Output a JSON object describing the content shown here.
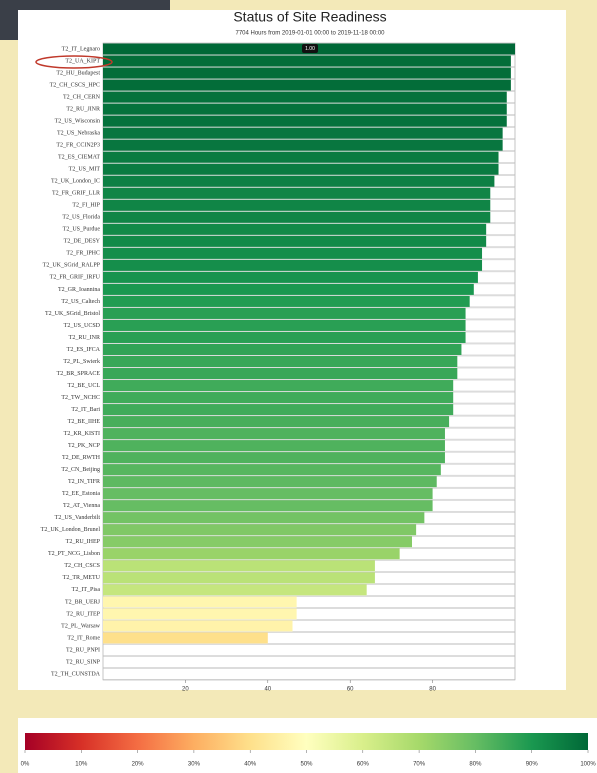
{
  "chart_data": {
    "type": "barh",
    "title": "Status of Site Readiness",
    "subtitle": "7704 Hours from 2019-01-01 00:00 to 2019-11-18 00:00",
    "annotation": "1.00",
    "categories": [
      "T2_IT_Legnaro",
      "T2_UA_KIPT",
      "T2_HU_Budapest",
      "T2_CH_CSCS_HPC",
      "T2_CH_CERN",
      "T2_RU_JINR",
      "T2_US_Wisconsin",
      "T2_US_Nebraska",
      "T2_FR_CCIN2P3",
      "T2_ES_CIEMAT",
      "T2_US_MIT",
      "T2_UK_London_IC",
      "T2_FR_GRIF_LLR",
      "T2_FI_HIP",
      "T2_US_Florida",
      "T2_US_Purdue",
      "T2_DE_DESY",
      "T2_FR_IPHC",
      "T2_UK_SGrid_RALPP",
      "T2_FR_GRIF_IRFU",
      "T2_GR_Ioannina",
      "T2_US_Caltech",
      "T2_UK_SGrid_Bristol",
      "T2_US_UCSD",
      "T2_RU_INR",
      "T2_ES_IFCA",
      "T2_PL_Swierk",
      "T2_BR_SPRACE",
      "T2_BE_UCL",
      "T2_TW_NCHC",
      "T2_IT_Bari",
      "T2_BE_IIHE",
      "T2_KR_KISTI",
      "T2_PK_NCP",
      "T2_DE_RWTH",
      "T2_CN_Beijing",
      "T2_IN_TIFR",
      "T2_EE_Estonia",
      "T2_AT_Vienna",
      "T2_US_Vanderbilt",
      "T2_UK_London_Brunel",
      "T2_RU_IHEP",
      "T2_PT_NCG_Lisbon",
      "T2_CH_CSCS",
      "T2_TR_METU",
      "T2_IT_Pisa",
      "T2_BR_UERJ",
      "T2_RU_ITEP",
      "T2_PL_Warsaw",
      "T2_IT_Rome",
      "T2_RU_PNPI",
      "T2_RU_SINP",
      "T2_TH_CUNSTDA"
    ],
    "values": [
      100,
      99,
      99,
      99,
      98,
      98,
      98,
      97,
      97,
      96,
      96,
      95,
      94,
      94,
      94,
      93,
      93,
      92,
      92,
      91,
      90,
      89,
      88,
      88,
      88,
      87,
      86,
      86,
      85,
      85,
      85,
      84,
      83,
      83,
      83,
      82,
      81,
      80,
      80,
      78,
      76,
      75,
      72,
      66,
      66,
      64,
      47,
      47,
      46,
      40,
      0,
      0,
      0
    ],
    "xlim": [
      0,
      100
    ],
    "xticks": [
      20,
      40,
      60,
      80
    ],
    "colorscale": [
      "#a50026",
      "#d73027",
      "#f46d43",
      "#fdae61",
      "#fee08b",
      "#ffffbf",
      "#d9ef8b",
      "#a6d96a",
      "#66bd63",
      "#1a9850",
      "#006837"
    ],
    "colorbar_ticks": [
      {
        "value": 0,
        "label": "0%"
      },
      {
        "value": 10,
        "label": "10%"
      },
      {
        "value": 20,
        "label": "20%"
      },
      {
        "value": 30,
        "label": "30%"
      },
      {
        "value": 40,
        "label": "40%"
      },
      {
        "value": 50,
        "label": "50%"
      },
      {
        "value": 60,
        "label": "60%"
      },
      {
        "value": 70,
        "label": "70%"
      },
      {
        "value": 80,
        "label": "80%"
      },
      {
        "value": 90,
        "label": "90%"
      },
      {
        "value": 100,
        "label": "100%"
      }
    ]
  }
}
